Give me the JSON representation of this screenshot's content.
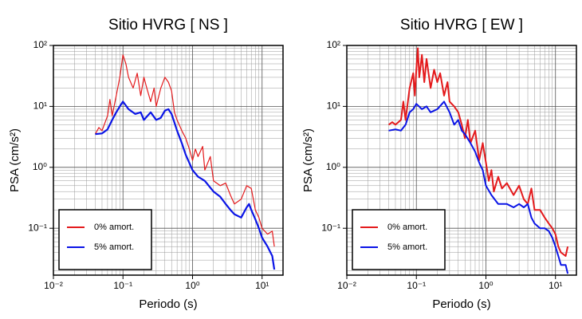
{
  "chart_data": [
    {
      "type": "line",
      "title": "Sitio HVRG [ NS ]",
      "x_label": "Periodo (s)",
      "y_label": "PSA (cm/s²)",
      "log_x": true,
      "log_y": true,
      "grid": true,
      "legend": "lower left",
      "xlim": [
        0.01,
        20
      ],
      "ylim": [
        0.017,
        100
      ],
      "xticks": [
        {
          "value": 0.01,
          "label": "10⁻²"
        },
        {
          "value": 0.1,
          "label": "10⁻¹"
        },
        {
          "value": 1,
          "label": "10⁰"
        },
        {
          "value": 10,
          "label": "10¹"
        }
      ],
      "yticks": [
        {
          "value": 0.1,
          "label": "10⁻¹"
        },
        {
          "value": 1,
          "label": "10⁰"
        },
        {
          "value": 10,
          "label": "10¹"
        },
        {
          "value": 100,
          "label": "10²"
        }
      ],
      "series": [
        {
          "name": "0% amort.",
          "color": "#e41a1c",
          "width": 1.2,
          "x": [
            0.04,
            0.045,
            0.05,
            0.06,
            0.065,
            0.07,
            0.08,
            0.09,
            0.1,
            0.11,
            0.12,
            0.14,
            0.16,
            0.18,
            0.2,
            0.22,
            0.25,
            0.28,
            0.3,
            0.35,
            0.4,
            0.45,
            0.5,
            0.55,
            0.6,
            0.7,
            0.8,
            0.9,
            1.0,
            1.1,
            1.2,
            1.4,
            1.5,
            1.8,
            2,
            2.5,
            3,
            3.5,
            4,
            5,
            6,
            7,
            8,
            9,
            10,
            12,
            14,
            15
          ],
          "values": [
            3.5,
            4.5,
            4,
            7,
            13,
            7,
            15,
            30,
            70,
            50,
            30,
            20,
            35,
            15,
            30,
            20,
            12,
            20,
            10,
            20,
            30,
            25,
            18,
            8,
            6,
            4,
            3,
            2,
            1.3,
            2,
            1.5,
            2.2,
            0.9,
            1.5,
            0.6,
            0.5,
            0.55,
            0.35,
            0.25,
            0.3,
            0.5,
            0.45,
            0.2,
            0.15,
            0.1,
            0.08,
            0.09,
            0.05
          ]
        },
        {
          "name": "5% amort.",
          "color": "#0a14e6",
          "width": 2.2,
          "x": [
            0.04,
            0.05,
            0.06,
            0.07,
            0.08,
            0.09,
            0.1,
            0.12,
            0.15,
            0.18,
            0.2,
            0.25,
            0.3,
            0.35,
            0.4,
            0.45,
            0.5,
            0.6,
            0.7,
            0.8,
            1.0,
            1.2,
            1.5,
            2,
            2.5,
            3,
            3.5,
            4,
            5,
            6,
            6.5,
            7,
            8,
            9,
            10,
            12,
            14,
            15
          ],
          "values": [
            3.5,
            3.6,
            4.2,
            6,
            8,
            10,
            12,
            9,
            7.5,
            8,
            6,
            8,
            6,
            6.5,
            8.5,
            9,
            7.5,
            4,
            2.5,
            1.6,
            0.9,
            0.7,
            0.6,
            0.4,
            0.33,
            0.25,
            0.2,
            0.17,
            0.15,
            0.22,
            0.25,
            0.2,
            0.14,
            0.1,
            0.07,
            0.05,
            0.035,
            0.021
          ]
        }
      ]
    },
    {
      "type": "line",
      "title": "Sitio HVRG [ EW ]",
      "x_label": "Periodo (s)",
      "y_label": "PSA (cm/s²)",
      "log_x": true,
      "log_y": true,
      "grid": true,
      "legend": "lower left",
      "xlim": [
        0.01,
        20
      ],
      "ylim": [
        0.017,
        100
      ],
      "xticks": [
        {
          "value": 0.01,
          "label": "10⁻²"
        },
        {
          "value": 0.1,
          "label": "10⁻¹"
        },
        {
          "value": 1,
          "label": "10⁰"
        },
        {
          "value": 10,
          "label": "10¹"
        }
      ],
      "yticks": [
        {
          "value": 0.1,
          "label": "10⁻¹"
        },
        {
          "value": 1,
          "label": "10⁰"
        },
        {
          "value": 10,
          "label": "10¹"
        },
        {
          "value": 100,
          "label": "10²"
        }
      ],
      "series": [
        {
          "name": "0% amort.",
          "color": "#e41a1c",
          "width": 2,
          "x": [
            0.04,
            0.045,
            0.05,
            0.06,
            0.065,
            0.07,
            0.08,
            0.09,
            0.095,
            0.1,
            0.105,
            0.11,
            0.12,
            0.13,
            0.14,
            0.16,
            0.18,
            0.2,
            0.22,
            0.25,
            0.28,
            0.3,
            0.35,
            0.4,
            0.45,
            0.5,
            0.55,
            0.6,
            0.7,
            0.8,
            0.9,
            1.0,
            1.1,
            1.2,
            1.3,
            1.5,
            1.7,
            2,
            2.5,
            3,
            3.5,
            4,
            4.5,
            5,
            6,
            7,
            8,
            9,
            10,
            11,
            12,
            14,
            15
          ],
          "values": [
            5,
            5.5,
            5,
            6,
            12,
            6,
            20,
            35,
            15,
            40,
            90,
            30,
            70,
            25,
            60,
            20,
            40,
            25,
            35,
            15,
            25,
            12,
            10,
            8,
            5,
            3,
            6,
            2.5,
            4,
            1.3,
            2.5,
            1.2,
            0.6,
            0.9,
            0.4,
            0.7,
            0.45,
            0.55,
            0.35,
            0.5,
            0.3,
            0.25,
            0.45,
            0.2,
            0.2,
            0.15,
            0.12,
            0.1,
            0.08,
            0.05,
            0.04,
            0.035,
            0.05
          ]
        },
        {
          "name": "5% amort.",
          "color": "#0a14e6",
          "width": 2,
          "x": [
            0.04,
            0.05,
            0.06,
            0.07,
            0.08,
            0.09,
            0.1,
            0.12,
            0.14,
            0.16,
            0.2,
            0.25,
            0.3,
            0.35,
            0.4,
            0.45,
            0.5,
            0.6,
            0.7,
            0.8,
            0.9,
            1.0,
            1.2,
            1.5,
            2,
            2.5,
            3,
            3.5,
            4,
            4.5,
            5,
            6,
            7,
            8,
            9,
            10,
            11,
            12,
            14,
            15
          ],
          "values": [
            4,
            4.2,
            4,
            5,
            8,
            9,
            11,
            9,
            10,
            8,
            9,
            12,
            8,
            5,
            6,
            4,
            3.5,
            2.5,
            1.8,
            1.2,
            0.9,
            0.5,
            0.35,
            0.25,
            0.25,
            0.22,
            0.25,
            0.22,
            0.25,
            0.15,
            0.12,
            0.1,
            0.1,
            0.09,
            0.07,
            0.05,
            0.035,
            0.025,
            0.025,
            0.018
          ]
        }
      ]
    }
  ]
}
